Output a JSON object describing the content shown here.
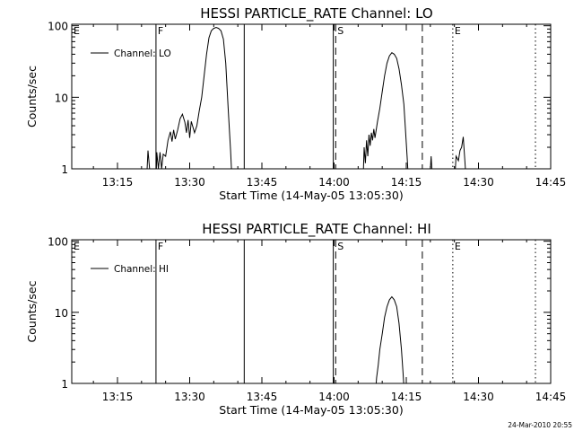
{
  "footer": {
    "timestamp": "24-Mar-2010 20:55"
  },
  "chart_data": [
    {
      "type": "line",
      "title": "HESSI PARTICLE_RATE Channel: LO",
      "xlabel": "Start Time (14-May-05 13:05:30)",
      "ylabel": "Counts/sec",
      "yscale": "log",
      "ylim": [
        1,
        100
      ],
      "xlim": [
        "13:05:30",
        "14:45:00"
      ],
      "x_ticks": [
        "13:15",
        "13:30",
        "13:45",
        "14:00",
        "14:15",
        "14:30",
        "14:45"
      ],
      "y_ticks": [
        "1",
        "10",
        "100"
      ],
      "grid": false,
      "legend_position": "top-left",
      "series": [
        {
          "name": "Channel: LO",
          "segments": [
            [
              [
                "13:21:00",
                0.6
              ],
              [
                "13:21:20",
                1.8
              ],
              [
                "13:21:40",
                1.0
              ],
              [
                "13:21:50",
                0.6
              ]
            ],
            [
              [
                "13:23:00",
                0.6
              ],
              [
                "13:23:10",
                1.7
              ],
              [
                "13:23:30",
                1.0
              ],
              [
                "13:23:50",
                1.7
              ],
              [
                "13:24:10",
                1.0
              ],
              [
                "13:24:30",
                1.6
              ],
              [
                "13:25:00",
                1.5
              ],
              [
                "13:25:30",
                2.5
              ],
              [
                "13:26:00",
                3.3
              ],
              [
                "13:26:20",
                2.4
              ],
              [
                "13:26:40",
                3.5
              ],
              [
                "13:27:00",
                2.6
              ],
              [
                "13:27:30",
                3.5
              ],
              [
                "13:28:00",
                5.0
              ],
              [
                "13:28:30",
                5.8
              ],
              [
                "13:29:00",
                4.5
              ],
              [
                "13:29:20",
                3.2
              ],
              [
                "13:29:40",
                4.8
              ],
              [
                "13:30:00",
                2.7
              ],
              [
                "13:30:20",
                4.6
              ],
              [
                "13:31:00",
                3.2
              ],
              [
                "13:31:30",
                4.0
              ],
              [
                "13:32:00",
                6.5
              ],
              [
                "13:32:30",
                10
              ],
              [
                "13:33:00",
                20
              ],
              [
                "13:33:30",
                40
              ],
              [
                "13:34:00",
                68
              ],
              [
                "13:34:30",
                85
              ],
              [
                "13:35:00",
                92
              ],
              [
                "13:35:30",
                95
              ],
              [
                "13:36:00",
                92
              ],
              [
                "13:36:30",
                85
              ],
              [
                "13:37:00",
                65
              ],
              [
                "13:37:30",
                30
              ],
              [
                "13:38:00",
                7
              ],
              [
                "13:38:30",
                1.8
              ],
              [
                "13:38:50",
                0.6
              ]
            ],
            [
              [
                "14:06:00",
                0.6
              ],
              [
                "14:06:15",
                2.0
              ],
              [
                "14:06:30",
                1.2
              ],
              [
                "14:06:45",
                2.5
              ],
              [
                "14:07:00",
                1.5
              ],
              [
                "14:07:15",
                3.0
              ],
              [
                "14:07:30",
                2.1
              ],
              [
                "14:07:45",
                3.2
              ],
              [
                "14:08:00",
                2.5
              ],
              [
                "14:08:15",
                3.6
              ],
              [
                "14:08:30",
                2.7
              ],
              [
                "14:09:00",
                4.5
              ],
              [
                "14:09:30",
                7
              ],
              [
                "14:10:00",
                12
              ],
              [
                "14:10:30",
                20
              ],
              [
                "14:11:00",
                30
              ],
              [
                "14:11:30",
                38
              ],
              [
                "14:12:00",
                42
              ],
              [
                "14:12:30",
                40
              ],
              [
                "14:13:00",
                35
              ],
              [
                "14:13:30",
                25
              ],
              [
                "14:14:00",
                15
              ],
              [
                "14:14:30",
                8
              ],
              [
                "14:14:50",
                3.5
              ],
              [
                "14:15:10",
                1.5
              ],
              [
                "14:15:30",
                0.6
              ]
            ],
            [
              [
                "14:19:50",
                0.6
              ],
              [
                "14:20:10",
                1.5
              ],
              [
                "14:20:30",
                0.6
              ]
            ],
            [
              [
                "14:25:00",
                0.6
              ],
              [
                "14:25:20",
                1.5
              ],
              [
                "14:25:50",
                1.3
              ],
              [
                "14:26:10",
                1.8
              ],
              [
                "14:26:30",
                2.0
              ],
              [
                "14:26:50",
                2.8
              ],
              [
                "14:27:10",
                1.3
              ],
              [
                "14:27:30",
                0.6
              ]
            ]
          ]
        }
      ],
      "annotations": [
        {
          "label": "E",
          "time": "13:05:30",
          "style": "solid"
        },
        {
          "label": "F",
          "time": "13:23:00",
          "style": "solid"
        },
        {
          "label": "",
          "time": "13:41:20",
          "style": "solid"
        },
        {
          "label": "",
          "time": "13:59:50",
          "style": "solid"
        },
        {
          "label": "S",
          "time": "14:00:20",
          "style": "dashed"
        },
        {
          "label": "",
          "time": "14:18:20",
          "style": "dashed"
        },
        {
          "label": "E",
          "time": "14:24:40",
          "style": "dotted"
        },
        {
          "label": "",
          "time": "14:41:50",
          "style": "dotted"
        }
      ]
    },
    {
      "type": "line",
      "title": "HESSI PARTICLE_RATE Channel: HI",
      "xlabel": "Start Time (14-May-05 13:05:30)",
      "ylabel": "Counts/sec",
      "yscale": "log",
      "ylim": [
        1,
        100
      ],
      "xlim": [
        "13:05:30",
        "14:45:00"
      ],
      "x_ticks": [
        "13:15",
        "13:30",
        "13:45",
        "14:00",
        "14:15",
        "14:30",
        "14:45"
      ],
      "y_ticks": [
        "1",
        "10",
        "100"
      ],
      "grid": false,
      "legend_position": "top-left",
      "series": [
        {
          "name": "Channel: HI",
          "segments": [
            [
              [
                "14:08:30",
                0.6
              ],
              [
                "14:08:50",
                1.2
              ],
              [
                "14:09:10",
                1.8
              ],
              [
                "14:09:30",
                3.0
              ],
              [
                "14:10:00",
                5.0
              ],
              [
                "14:10:30",
                8.5
              ],
              [
                "14:11:00",
                12
              ],
              [
                "14:11:30",
                15
              ],
              [
                "14:12:00",
                16.5
              ],
              [
                "14:12:30",
                15
              ],
              [
                "14:13:00",
                12
              ],
              [
                "14:13:30",
                7
              ],
              [
                "14:14:00",
                3
              ],
              [
                "14:14:20",
                1.4
              ],
              [
                "14:14:40",
                0.6
              ]
            ]
          ]
        }
      ],
      "annotations": [
        {
          "label": "E",
          "time": "13:05:30",
          "style": "solid"
        },
        {
          "label": "F",
          "time": "13:23:00",
          "style": "solid"
        },
        {
          "label": "",
          "time": "13:41:20",
          "style": "solid"
        },
        {
          "label": "",
          "time": "13:59:50",
          "style": "solid"
        },
        {
          "label": "S",
          "time": "14:00:20",
          "style": "dashed"
        },
        {
          "label": "",
          "time": "14:18:20",
          "style": "dashed"
        },
        {
          "label": "E",
          "time": "14:24:40",
          "style": "dotted"
        },
        {
          "label": "",
          "time": "14:41:50",
          "style": "dotted"
        }
      ]
    }
  ]
}
